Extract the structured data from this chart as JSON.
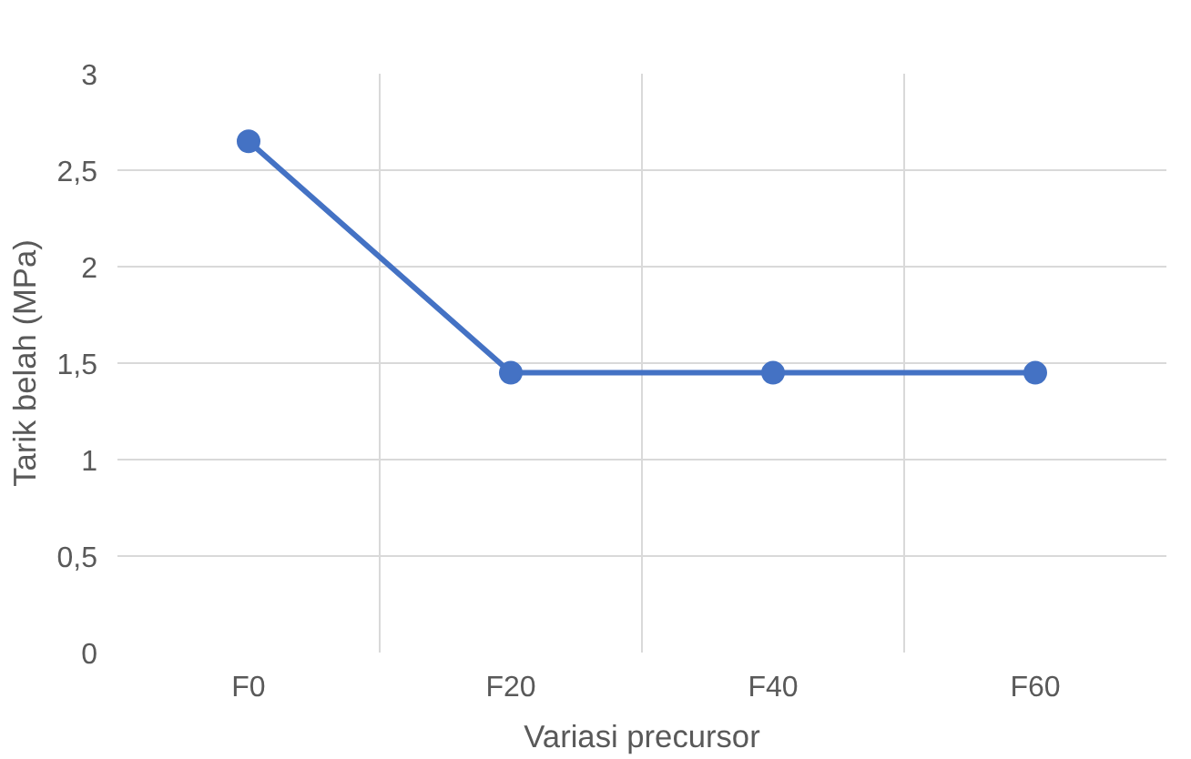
{
  "chart_data": {
    "type": "line",
    "categories": [
      "F0",
      "F20",
      "F40",
      "F60"
    ],
    "series": [
      {
        "color": "#4472c4",
        "values": [
          2.65,
          1.45,
          1.45,
          1.45
        ]
      }
    ],
    "ylim": [
      0,
      3
    ],
    "yticks": [
      0,
      {
        "value": 0.5,
        "label": "0,5"
      },
      1,
      {
        "value": 1.5,
        "label": "1,5"
      },
      2,
      {
        "value": 2.5,
        "label": "2,5"
      },
      3
    ],
    "xlabel": "Variasi precursor",
    "ylabel": "Tarik belah (MPa)",
    "grid": true,
    "marker": "circle",
    "line_style": "solid"
  }
}
